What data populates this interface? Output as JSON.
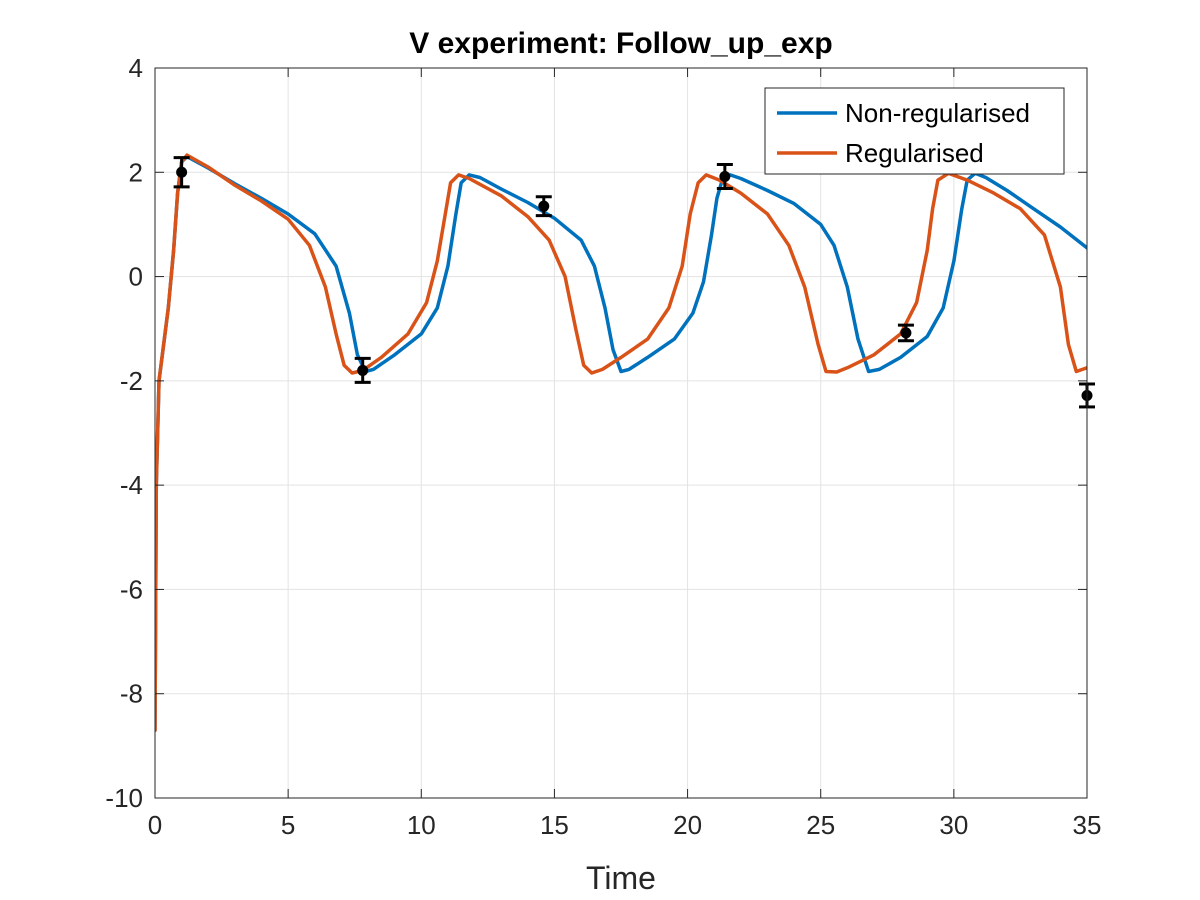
{
  "chart_data": {
    "type": "line",
    "title": "V experiment: Follow_up_exp",
    "xlabel": "Time",
    "ylabel": "",
    "xlim": [
      0,
      35
    ],
    "ylim": [
      -10,
      4
    ],
    "xticks": [
      0,
      5,
      10,
      15,
      20,
      25,
      30,
      35
    ],
    "yticks": [
      -10,
      -8,
      -6,
      -4,
      -2,
      0,
      2,
      4
    ],
    "grid": true,
    "legend_position": "top-right",
    "series": [
      {
        "name": "Non-regularised",
        "color": "#0072BD",
        "x": [
          0,
          0.05,
          0.15,
          0.3,
          0.5,
          0.7,
          0.85,
          1.0,
          1.2,
          2,
          3,
          4,
          5,
          6,
          6.8,
          7.3,
          7.6,
          7.9,
          8.2,
          9,
          10,
          10.6,
          11.0,
          11.3,
          11.5,
          11.8,
          12.2,
          13,
          14,
          15,
          16,
          16.5,
          16.9,
          17.2,
          17.5,
          17.8,
          18.5,
          19.5,
          20.2,
          20.6,
          20.9,
          21.1,
          21.3,
          21.6,
          22,
          23,
          24,
          25,
          25.5,
          26.0,
          26.4,
          26.8,
          27.2,
          28,
          29,
          29.6,
          30.0,
          30.3,
          30.5,
          30.8,
          31.2,
          32,
          33,
          34,
          35
        ],
        "y": [
          -8.7,
          -4.0,
          -2.0,
          -1.4,
          -0.6,
          0.5,
          1.6,
          2.2,
          2.3,
          2.08,
          1.78,
          1.5,
          1.2,
          0.82,
          0.2,
          -0.7,
          -1.5,
          -1.82,
          -1.78,
          -1.5,
          -1.1,
          -0.6,
          0.2,
          1.2,
          1.8,
          1.95,
          1.9,
          1.68,
          1.42,
          1.12,
          0.7,
          0.2,
          -0.6,
          -1.4,
          -1.82,
          -1.78,
          -1.55,
          -1.2,
          -0.7,
          -0.1,
          0.8,
          1.5,
          1.85,
          1.95,
          1.88,
          1.65,
          1.4,
          1.0,
          0.6,
          -0.2,
          -1.2,
          -1.82,
          -1.78,
          -1.55,
          -1.15,
          -0.6,
          0.3,
          1.3,
          1.85,
          1.98,
          1.9,
          1.65,
          1.3,
          0.95,
          0.55
        ]
      },
      {
        "name": "Regularised",
        "color": "#D95319",
        "x": [
          0,
          0.05,
          0.15,
          0.3,
          0.5,
          0.7,
          0.85,
          1.0,
          1.2,
          2,
          3,
          4,
          5,
          5.8,
          6.4,
          6.8,
          7.1,
          7.4,
          7.8,
          8.5,
          9.5,
          10.2,
          10.6,
          10.9,
          11.1,
          11.4,
          11.8,
          13,
          14,
          14.8,
          15.4,
          15.8,
          16.1,
          16.4,
          16.8,
          17.5,
          18.5,
          19.3,
          19.8,
          20.1,
          20.4,
          20.7,
          21.2,
          22,
          23,
          23.8,
          24.4,
          24.9,
          25.2,
          25.6,
          26,
          27,
          28,
          28.6,
          29.0,
          29.2,
          29.4,
          29.8,
          30.5,
          31.5,
          32.5,
          33.4,
          34.0,
          34.3,
          34.6,
          35
        ],
        "y": [
          -8.7,
          -4.0,
          -2.0,
          -1.4,
          -0.6,
          0.5,
          1.6,
          2.2,
          2.33,
          2.1,
          1.75,
          1.45,
          1.1,
          0.6,
          -0.2,
          -1.1,
          -1.7,
          -1.85,
          -1.8,
          -1.55,
          -1.1,
          -0.5,
          0.3,
          1.2,
          1.8,
          1.95,
          1.88,
          1.55,
          1.15,
          0.7,
          0.0,
          -1.0,
          -1.7,
          -1.85,
          -1.78,
          -1.55,
          -1.2,
          -0.6,
          0.2,
          1.2,
          1.8,
          1.95,
          1.85,
          1.6,
          1.2,
          0.6,
          -0.2,
          -1.3,
          -1.82,
          -1.83,
          -1.75,
          -1.5,
          -1.1,
          -0.5,
          0.5,
          1.3,
          1.85,
          1.98,
          1.85,
          1.6,
          1.3,
          0.8,
          -0.2,
          -1.3,
          -1.82,
          -1.75
        ]
      }
    ],
    "data_points": {
      "x": [
        1.0,
        7.8,
        14.6,
        21.4,
        28.2,
        35.0
      ],
      "y": [
        2.0,
        -1.8,
        1.35,
        1.92,
        -1.08,
        -2.28
      ],
      "error": [
        0.28,
        0.23,
        0.18,
        0.23,
        0.15,
        0.22
      ]
    }
  }
}
